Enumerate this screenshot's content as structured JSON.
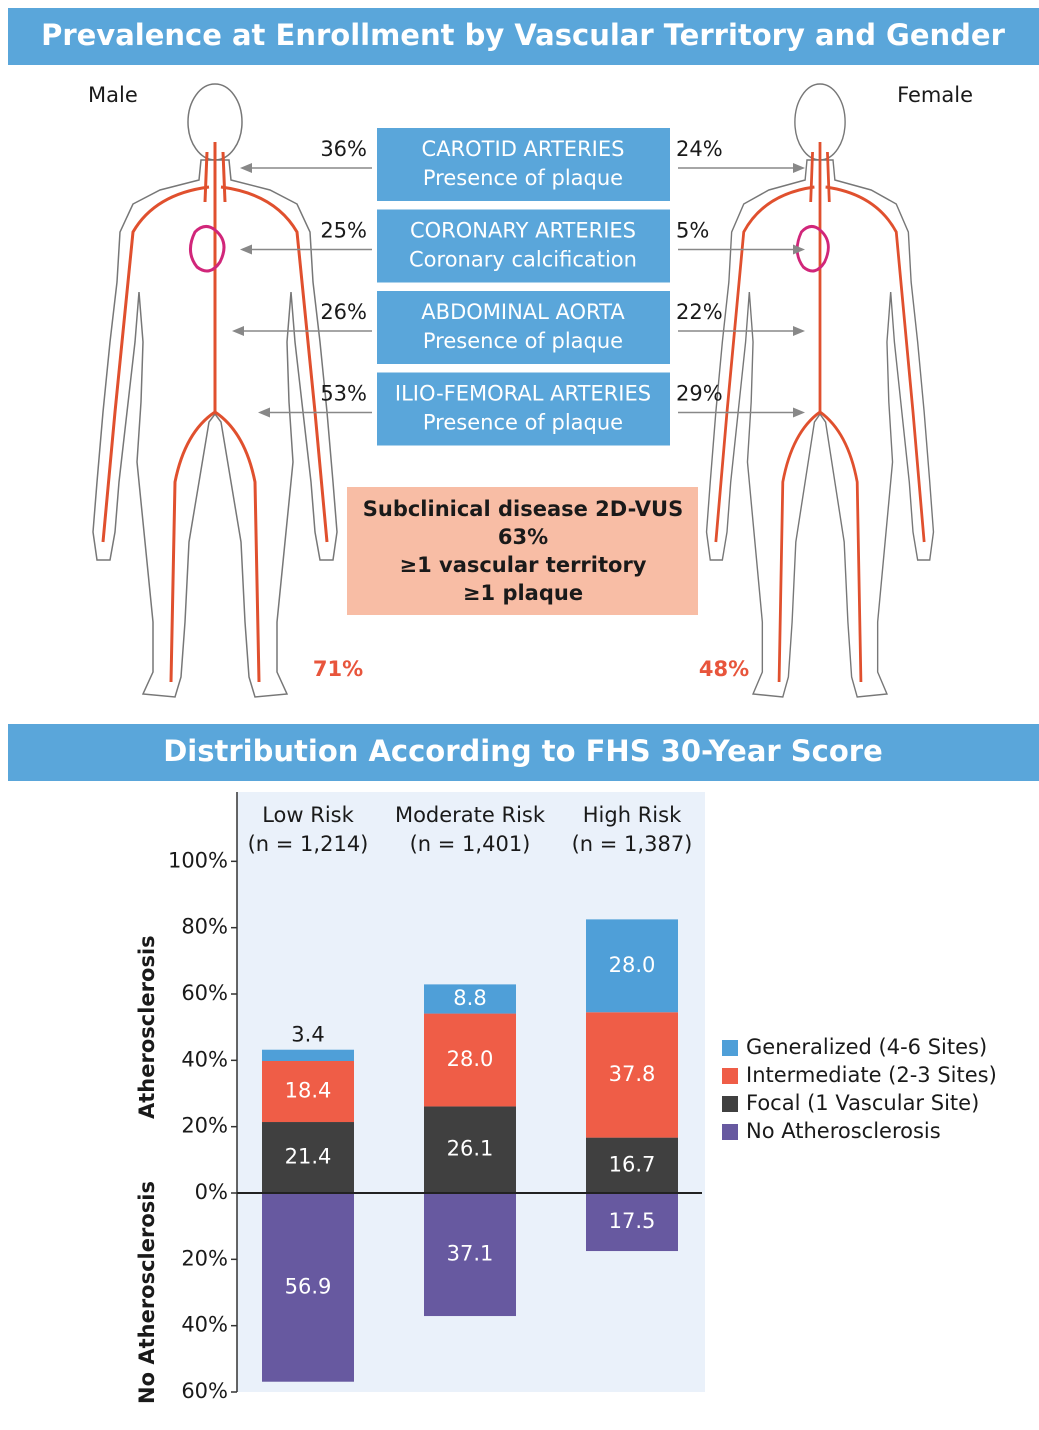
{
  "header": {
    "title": "Prevalence at Enrollment by Vascular Territory and Gender"
  },
  "figures": {
    "male": {
      "label": "Male",
      "total": "71%"
    },
    "female": {
      "label": "Female",
      "total": "48%"
    }
  },
  "territories": [
    {
      "name": "CAROTID ARTERIES",
      "measure": "Presence of plaque",
      "male": "36%",
      "female": "24%"
    },
    {
      "name": "CORONARY ARTERIES",
      "measure": "Coronary calcification",
      "male": "25%",
      "female": "5%"
    },
    {
      "name": "ABDOMINAL AORTA",
      "measure": "Presence of plaque",
      "male": "26%",
      "female": "22%"
    },
    {
      "name": "ILIO-FEMORAL ARTERIES",
      "measure": "Presence of plaque",
      "male": "53%",
      "female": "29%"
    }
  ],
  "summary": {
    "lines": [
      "Subclinical disease 2D-VUS",
      "63%",
      "≥1 vascular territory",
      "≥1 plaque"
    ]
  },
  "chart_data": {
    "type": "bar",
    "title": "Distribution According to FHS 30-Year Score",
    "categories": [
      "Low Risk",
      "Moderate Risk",
      "High Risk"
    ],
    "category_counts": [
      "(n = 1,214)",
      "(n = 1,401)",
      "(n = 1,387)"
    ],
    "y_axis_labels": [
      "Atherosclerosis",
      "No Atherosclerosis"
    ],
    "stacked": true,
    "series": [
      {
        "name": "Generalized (4-6 Sites)",
        "color": "#4f9fd8",
        "values": [
          3.4,
          8.8,
          28.0
        ],
        "value_labels": [
          "3.4",
          "8.8",
          "28.0"
        ]
      },
      {
        "name": "Intermediate (2-3 Sites)",
        "color": "#ef5d47",
        "values": [
          18.4,
          28.0,
          37.8
        ],
        "value_labels": [
          "18.4",
          "28.0",
          "37.8"
        ]
      },
      {
        "name": "Focal (1 Vascular Site)",
        "color": "#404040",
        "values": [
          21.4,
          26.1,
          16.7
        ]
      },
      {
        "name": "No Atherosclerosis",
        "color": "#6759a0",
        "values": [
          -56.9,
          -37.1,
          -17.5
        ],
        "value_labels": [
          "56.9",
          "37.1",
          "17.5"
        ]
      }
    ],
    "ylim": [
      -60,
      120
    ],
    "yticks": [
      {
        "value": 100,
        "label": "100%"
      },
      {
        "value": 80,
        "label": "80%"
      },
      {
        "value": 60,
        "label": "60%"
      },
      {
        "value": 40,
        "label": "40%"
      },
      {
        "value": 20,
        "label": "20%"
      },
      {
        "value": 0,
        "label": "0%"
      },
      {
        "value": -20,
        "label": "20%"
      },
      {
        "value": -40,
        "label": "40%"
      },
      {
        "value": -60,
        "label": "60%"
      }
    ]
  }
}
